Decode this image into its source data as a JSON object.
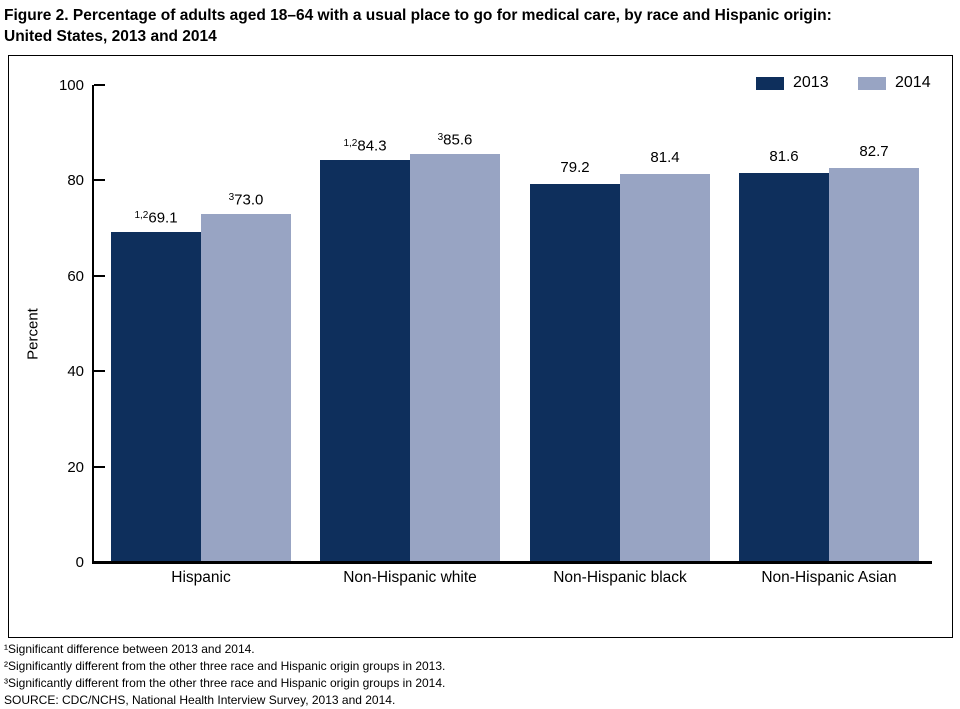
{
  "title": {
    "line1": "Figure 2. Percentage of adults aged 18–64 with a usual place to go for medical care, by race and Hispanic origin:",
    "line2": "United States, 2013 and 2014"
  },
  "chart_data": {
    "type": "bar",
    "categories": [
      "Hispanic",
      "Non-Hispanic white",
      "Non-Hispanic black",
      "Non-Hispanic Asian"
    ],
    "series": [
      {
        "name": "2013",
        "color": "#0e2f5c",
        "values": [
          69.1,
          84.3,
          79.2,
          81.6
        ],
        "labels": [
          "69.1",
          "84.3",
          "79.2",
          "81.6"
        ],
        "label_prefixes": [
          "1,2",
          "1,2",
          "",
          ""
        ]
      },
      {
        "name": "2014",
        "color": "#98a4c3",
        "values": [
          73.0,
          85.6,
          81.4,
          82.7
        ],
        "labels": [
          "73.0",
          "85.6",
          "81.4",
          "82.7"
        ],
        "label_prefixes": [
          "3",
          "3",
          "",
          ""
        ]
      }
    ],
    "title": "",
    "xlabel": "",
    "ylabel": "Percent",
    "ylim": [
      0,
      100
    ],
    "yticks": [
      0,
      20,
      40,
      60,
      80,
      100
    ],
    "grid": false,
    "legend_position": "top-right"
  },
  "footnotes": [
    "¹Significant difference between 2013 and 2014.",
    "²Significantly different from the other three race and Hispanic origin groups in 2013.",
    "³Significantly different from the other three race and Hispanic origin groups in 2014.",
    "SOURCE: CDC/NCHS, National Health Interview Survey, 2013 and 2014."
  ]
}
